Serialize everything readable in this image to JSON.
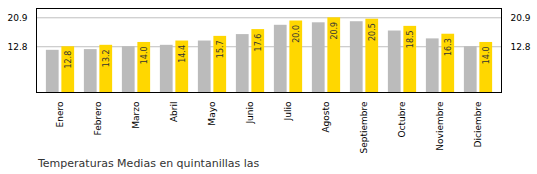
{
  "chart_data": {
    "type": "bar",
    "title": "Temperaturas Medias en quintanillas las",
    "categories": [
      "Enero",
      "Febrero",
      "Marzo",
      "Abril",
      "Mayo",
      "Junio",
      "Julio",
      "Agosto",
      "Septiembre",
      "Octubre",
      "Noviembre",
      "Diciembre"
    ],
    "series": [
      {
        "color": "#BBBBBB",
        "values": [
          11.8,
          12.0,
          12.8,
          13.2,
          14.4,
          16.2,
          18.8,
          19.5,
          19.8,
          17.2,
          15.0,
          12.8
        ]
      },
      {
        "color": "#FFD700",
        "values": [
          12.8,
          13.2,
          14.0,
          14.4,
          15.7,
          17.6,
          20.0,
          20.9,
          20.5,
          18.5,
          16.3,
          14.0
        ],
        "data_labels": true,
        "value_labels": [
          "12.8",
          "13.2",
          "14.0",
          "14.4",
          "15.7",
          "17.6",
          "20.0",
          "20.9",
          "20.5",
          "18.5",
          "16.3",
          "14.0"
        ]
      }
    ],
    "ylim": [
      0,
      23.5
    ],
    "yticks": [
      12.8,
      20.9
    ],
    "grid": true
  }
}
